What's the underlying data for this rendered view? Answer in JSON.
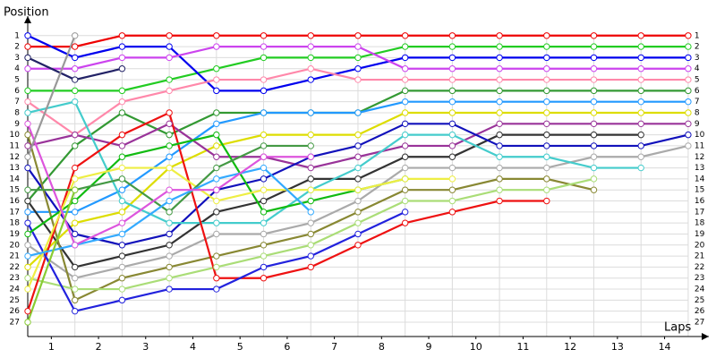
{
  "chart_data": {
    "type": "line",
    "y_label": "Position",
    "x_label": "Laps",
    "x": [
      0,
      1,
      2,
      3,
      4,
      5,
      6,
      7,
      8,
      9,
      10,
      11,
      12,
      13,
      14
    ],
    "xlim": [
      0,
      14.4
    ],
    "ylim": [
      28.3,
      -0.2
    ],
    "xticks": [
      {
        "value": 0.5,
        "label": "1"
      },
      {
        "value": 1.5,
        "label": "2"
      },
      {
        "value": 2.5,
        "label": "3"
      },
      {
        "value": 3.5,
        "label": "4"
      },
      {
        "value": 4.5,
        "label": "5"
      },
      {
        "value": 5.5,
        "label": "6"
      },
      {
        "value": 6.5,
        "label": "7"
      },
      {
        "value": 7.5,
        "label": "8"
      },
      {
        "value": 8.5,
        "label": "9"
      },
      {
        "value": 9.5,
        "label": "10"
      },
      {
        "value": 10.5,
        "label": "11"
      },
      {
        "value": 11.5,
        "label": "12"
      },
      {
        "value": 12.5,
        "label": "13"
      },
      {
        "value": 13.5,
        "label": "14"
      }
    ],
    "yticks": [
      1,
      2,
      3,
      4,
      5,
      6,
      7,
      8,
      9,
      10,
      11,
      12,
      13,
      14,
      15,
      16,
      17,
      18,
      19,
      20,
      21,
      22,
      23,
      24,
      25,
      26,
      27
    ],
    "grid": true,
    "series": [
      {
        "color": "#ee0000",
        "values": [
          2,
          2,
          1,
          1,
          1,
          1,
          1,
          1,
          1,
          1,
          1,
          1,
          1,
          1,
          1
        ]
      },
      {
        "color": "#22cc22",
        "values": [
          6,
          6,
          6,
          5,
          4,
          3,
          3,
          3,
          2,
          2,
          2,
          2,
          2,
          2,
          2
        ]
      },
      {
        "color": "#0000ee",
        "values": [
          1,
          3,
          2,
          2,
          6,
          6,
          5,
          4,
          3,
          3,
          3,
          3,
          3,
          3,
          3
        ]
      },
      {
        "color": "#cc44ee",
        "values": [
          4,
          4,
          3,
          3,
          2,
          2,
          2,
          2,
          4,
          4,
          4,
          4,
          4,
          4,
          4
        ]
      },
      {
        "color": "#ff88aa",
        "values": [
          7,
          10,
          7,
          6,
          5,
          5,
          4,
          5,
          5,
          5,
          5,
          5,
          5,
          5,
          5
        ]
      },
      {
        "color": "#339933",
        "values": [
          16,
          11,
          8,
          10,
          8,
          8,
          8,
          8,
          6,
          6,
          6,
          6,
          6,
          6,
          6
        ]
      },
      {
        "color": "#2299ff",
        "values": [
          17,
          17,
          15,
          12,
          9,
          8,
          8,
          8,
          7,
          7,
          7,
          7,
          7,
          7,
          7
        ]
      },
      {
        "color": "#dddd00",
        "values": [
          22,
          18,
          17,
          13,
          11,
          10,
          10,
          10,
          8,
          8,
          8,
          8,
          8,
          8,
          8
        ]
      },
      {
        "color": "#993399",
        "values": [
          11,
          10,
          11,
          9,
          12,
          12,
          13,
          12,
          11,
          11,
          9,
          9,
          9,
          9,
          9
        ]
      },
      {
        "color": "#333333",
        "values": [
          16,
          22,
          21,
          20,
          17,
          16,
          14,
          14,
          12,
          12,
          10,
          10,
          10,
          10,
          null
        ]
      },
      {
        "color": "#1111bb",
        "values": [
          13,
          19,
          20,
          19,
          15,
          14,
          12,
          11,
          9,
          9,
          11,
          11,
          11,
          11,
          10
        ]
      },
      {
        "color": "#aaaaaa",
        "values": [
          20,
          23,
          22,
          21,
          19,
          19,
          18,
          16,
          13,
          13,
          13,
          13,
          12,
          12,
          11
        ]
      },
      {
        "color": "#44cccc",
        "values": [
          8,
          7,
          16,
          18,
          18,
          18,
          15,
          13,
          10,
          10,
          12,
          12,
          13,
          13,
          null
        ]
      },
      {
        "color": "#888833",
        "values": [
          10,
          25,
          23,
          22,
          21,
          20,
          19,
          17,
          15,
          15,
          14,
          14,
          15,
          null,
          null
        ]
      },
      {
        "color": "#aadd77",
        "values": [
          23,
          24,
          24,
          23,
          22,
          21,
          20,
          18,
          16,
          16,
          15,
          15,
          14,
          null,
          null
        ]
      },
      {
        "color": "#ee1111",
        "values": [
          26,
          13,
          10,
          8,
          23,
          23,
          22,
          20,
          18,
          17,
          16,
          16,
          null,
          null,
          null
        ]
      },
      {
        "color": "#2222dd",
        "values": [
          18,
          26,
          25,
          24,
          24,
          22,
          21,
          19,
          17,
          null,
          null,
          null,
          null,
          null,
          null
        ]
      },
      {
        "color": "#11bb11",
        "values": [
          19,
          16,
          12,
          11,
          10,
          17,
          16,
          15,
          14,
          null,
          null,
          null,
          null,
          null,
          null
        ]
      },
      {
        "color": "#eeee44",
        "values": [
          24,
          14,
          13,
          13,
          16,
          15,
          15,
          15,
          14,
          14,
          null,
          null,
          null,
          null,
          null
        ]
      },
      {
        "color": "#449944",
        "values": [
          15,
          15,
          14,
          17,
          13,
          11,
          11,
          null,
          null,
          null,
          null,
          null,
          null,
          null,
          null
        ]
      },
      {
        "color": "#33aaff",
        "values": [
          21,
          20,
          19,
          16,
          14,
          13,
          17,
          null,
          null,
          null,
          null,
          null,
          null,
          null,
          null
        ]
      },
      {
        "color": "#222266",
        "values": [
          3,
          5,
          4,
          null,
          null,
          null,
          null,
          null,
          null,
          null,
          null,
          null,
          null,
          null,
          null
        ]
      },
      {
        "color": "#dd55dd",
        "values": [
          9,
          20,
          18,
          15,
          15,
          12,
          12,
          null,
          null,
          null,
          null,
          null,
          null,
          null,
          null
        ]
      },
      {
        "color": "#999999",
        "values": [
          12,
          1,
          null,
          null,
          null,
          null,
          null,
          null,
          null,
          null,
          null,
          null,
          null,
          null,
          null
        ]
      },
      {
        "color": "#88cc33",
        "values": [
          27,
          15,
          null,
          null,
          null,
          null,
          null,
          null,
          null,
          null,
          null,
          null,
          null,
          null,
          null
        ]
      }
    ]
  }
}
